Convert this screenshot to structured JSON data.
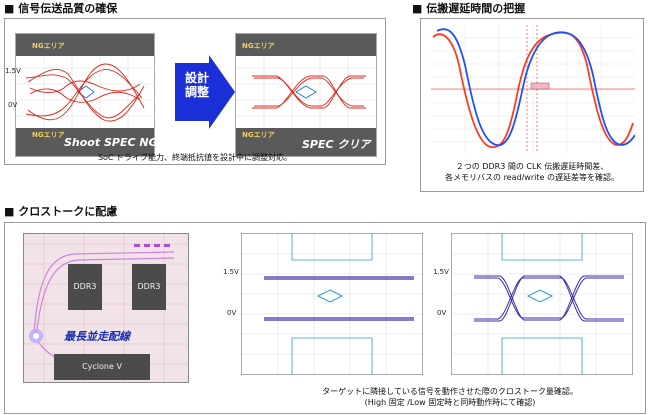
{
  "sections": {
    "signal_quality": {
      "title": "■ 信号伝送品質の確保",
      "caption": "SoC ドライブ能力、終端抵抗値を設計中に調整対応。",
      "left_plot": {
        "ng_label": "NGエリア",
        "level_high": "1.5V",
        "level_zero": "0V",
        "overlay": "Shoot SPEC NG"
      },
      "arrow_label": "設計\n調整",
      "right_plot": {
        "ng_label": "NGエリア",
        "overlay": "SPEC クリア"
      }
    },
    "propagation_delay": {
      "title": "■ 伝搬遅延時間の把握",
      "caption_line1": "２つの DDR3 間の CLK 伝搬遅延時間差、",
      "caption_line2": "各メモリバスの read/write の遅延差等を確認。",
      "colors": {
        "series_a": "#ff3b1f",
        "series_b": "#1f4fff"
      }
    },
    "crosstalk": {
      "title": "■ クロストークに配慮",
      "pcb": {
        "chip1": "DDR3",
        "chip2": "DDR3",
        "fpga": "Cyclone V",
        "highlight_label": "最長並走配線"
      },
      "plot_levels": {
        "high": "1.5V",
        "zero": "0V"
      },
      "caption_line1": "ターゲットに隣接している信号を動作させた際のクロストーク量確認。",
      "caption_line2": "(High 固定 /Low 固定時と同時動作時にて確認)"
    }
  }
}
